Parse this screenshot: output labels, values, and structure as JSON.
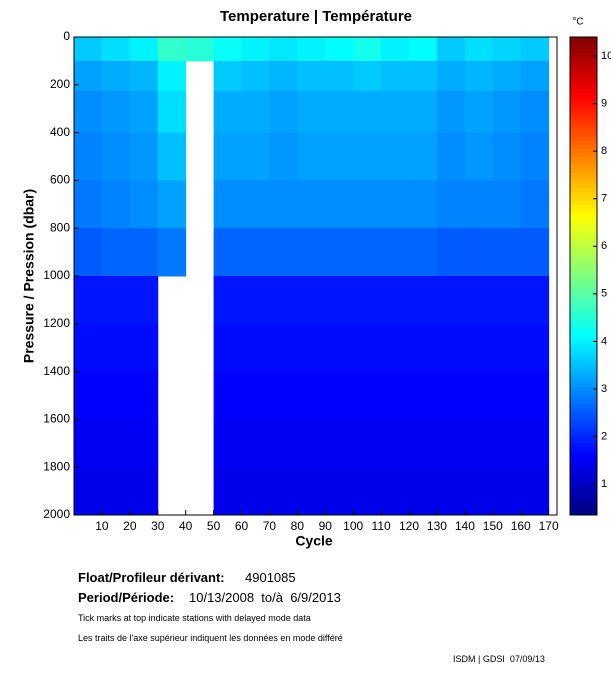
{
  "chart_data": {
    "type": "heatmap",
    "title": "Temperature | Température",
    "colorbar_label": "°C",
    "xlabel": "Cycle",
    "ylabel": "Pressure / Pression (dbar)",
    "x": [
      5,
      15,
      25,
      35,
      45,
      55,
      65,
      75,
      85,
      95,
      105,
      115,
      125,
      135,
      145,
      155,
      165
    ],
    "y": [
      50,
      150,
      300,
      500,
      700,
      900,
      1100,
      1300,
      1500,
      1700,
      1900
    ],
    "z": [
      [
        3.6,
        3.8,
        4.0,
        4.6,
        4.5,
        4.2,
        4.0,
        3.9,
        4.0,
        4.1,
        4.3,
        4.0,
        4.1,
        3.6,
        3.8,
        3.7,
        3.6
      ],
      [
        3.2,
        3.3,
        3.4,
        4.0,
        null,
        3.6,
        3.5,
        3.4,
        3.5,
        3.5,
        3.6,
        3.5,
        3.5,
        3.3,
        3.4,
        3.3,
        3.2
      ],
      [
        3.0,
        3.1,
        3.2,
        3.8,
        null,
        3.3,
        3.3,
        3.2,
        3.3,
        3.3,
        3.3,
        3.3,
        3.3,
        3.1,
        3.2,
        3.1,
        3.0
      ],
      [
        2.9,
        3.0,
        3.1,
        3.5,
        null,
        3.2,
        3.2,
        3.1,
        3.2,
        3.2,
        3.2,
        3.2,
        3.2,
        3.0,
        3.1,
        3.0,
        2.9
      ],
      [
        2.8,
        2.9,
        3.0,
        3.2,
        null,
        3.0,
        3.0,
        3.0,
        3.0,
        3.0,
        3.0,
        3.0,
        3.0,
        2.9,
        2.9,
        2.9,
        2.8
      ],
      [
        2.5,
        2.6,
        2.6,
        2.8,
        null,
        2.6,
        2.6,
        2.6,
        2.6,
        2.6,
        2.6,
        2.6,
        2.6,
        2.5,
        2.5,
        2.5,
        2.5
      ],
      [
        1.8,
        1.8,
        1.8,
        null,
        null,
        1.8,
        1.8,
        1.8,
        1.8,
        1.8,
        1.8,
        1.8,
        1.8,
        1.8,
        1.8,
        1.8,
        1.8
      ],
      [
        1.7,
        1.7,
        1.7,
        null,
        null,
        1.7,
        1.7,
        1.7,
        1.7,
        1.7,
        1.7,
        1.7,
        1.7,
        1.7,
        1.7,
        1.7,
        1.7
      ],
      [
        1.6,
        1.6,
        1.6,
        null,
        null,
        1.6,
        1.6,
        1.6,
        1.6,
        1.6,
        1.6,
        1.6,
        1.6,
        1.6,
        1.6,
        1.6,
        1.6
      ],
      [
        1.5,
        1.5,
        1.5,
        null,
        null,
        1.5,
        1.5,
        1.5,
        1.5,
        1.5,
        1.5,
        1.5,
        1.5,
        1.5,
        1.5,
        1.5,
        1.5
      ],
      [
        1.4,
        1.4,
        1.4,
        null,
        null,
        1.4,
        1.4,
        1.4,
        1.4,
        1.4,
        1.4,
        1.4,
        1.4,
        1.4,
        1.4,
        1.4,
        1.4
      ]
    ],
    "xlim": [
      0,
      173
    ],
    "xticks": [
      10,
      20,
      30,
      40,
      50,
      60,
      70,
      80,
      90,
      100,
      110,
      120,
      130,
      140,
      150,
      160,
      170
    ],
    "ylim": [
      0,
      2000
    ],
    "yticks": [
      0,
      200,
      400,
      600,
      800,
      1000,
      1200,
      1400,
      1600,
      1800,
      2000
    ],
    "y_inverted": true,
    "clim": [
      0.35,
      10.4
    ],
    "cticks": [
      1,
      2,
      3,
      4,
      5,
      6,
      7,
      8,
      9,
      10
    ],
    "colormap": "jet"
  },
  "footer": {
    "float_label": "Float/Profileur dérivant:",
    "float_id": "4901085",
    "period_label": "Period/Période:",
    "period": "10/13/2008  to/à  6/9/2013",
    "note_en": "Tick marks at top indicate stations with delayed mode data",
    "note_fr": "Les traits de l'axe supérieur indiquent les données en mode différé",
    "credit": "ISDM | GDSI  07/09/13"
  }
}
